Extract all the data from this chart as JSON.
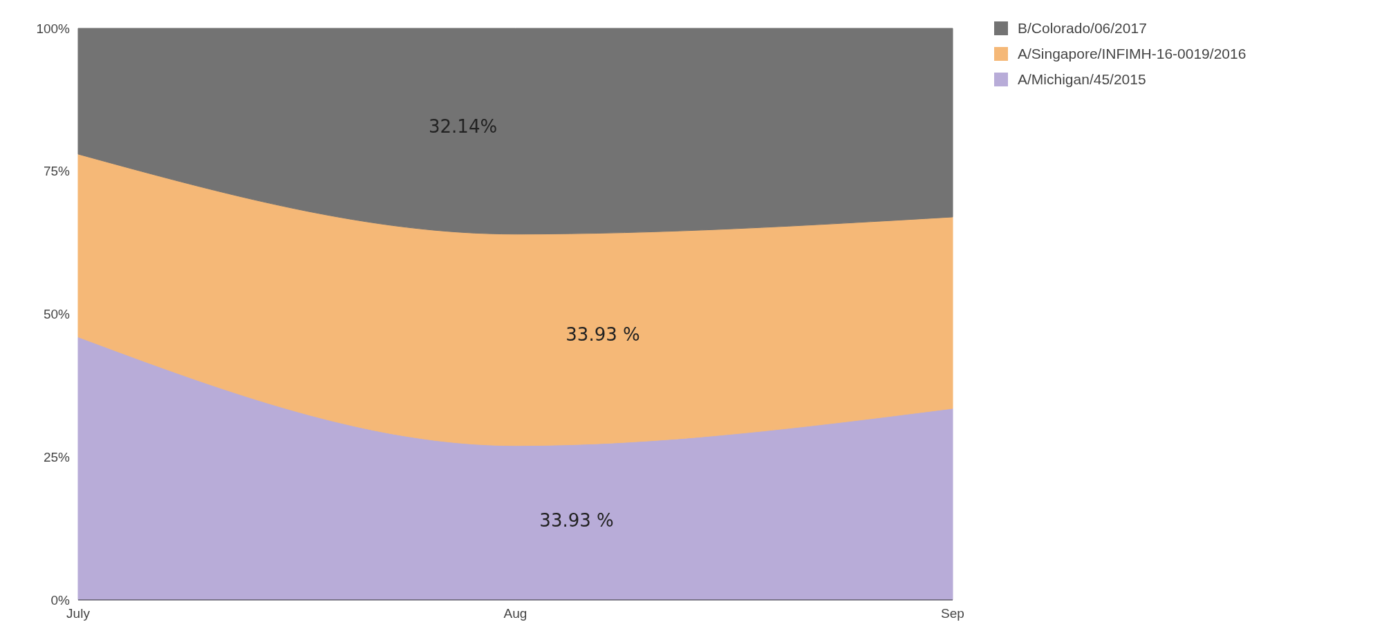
{
  "chart_data": {
    "type": "area",
    "stacked": true,
    "categories": [
      "July",
      "Aug",
      "Sep"
    ],
    "series": [
      {
        "name": "A/Michigan/45/2015",
        "color": "#b8acd8",
        "values": [
          46,
          27,
          33.5
        ]
      },
      {
        "name": "A/Singapore/INFIMH-16-0019/2016",
        "color": "#f5b877",
        "values": [
          32,
          37,
          33.5
        ]
      },
      {
        "name": "B/Colorado/06/2017",
        "color": "#737373",
        "values": [
          22,
          36,
          33
        ]
      }
    ],
    "ylim": [
      0,
      100
    ],
    "yticks": [
      {
        "value": 0,
        "label": "0%"
      },
      {
        "value": 25,
        "label": "25%"
      },
      {
        "value": 50,
        "label": "50%"
      },
      {
        "value": 75,
        "label": "75%"
      },
      {
        "value": 100,
        "label": "100%"
      }
    ],
    "annotations": [
      "32.14%",
      "33.93 %",
      "33.93 %"
    ],
    "legend": "top right"
  }
}
